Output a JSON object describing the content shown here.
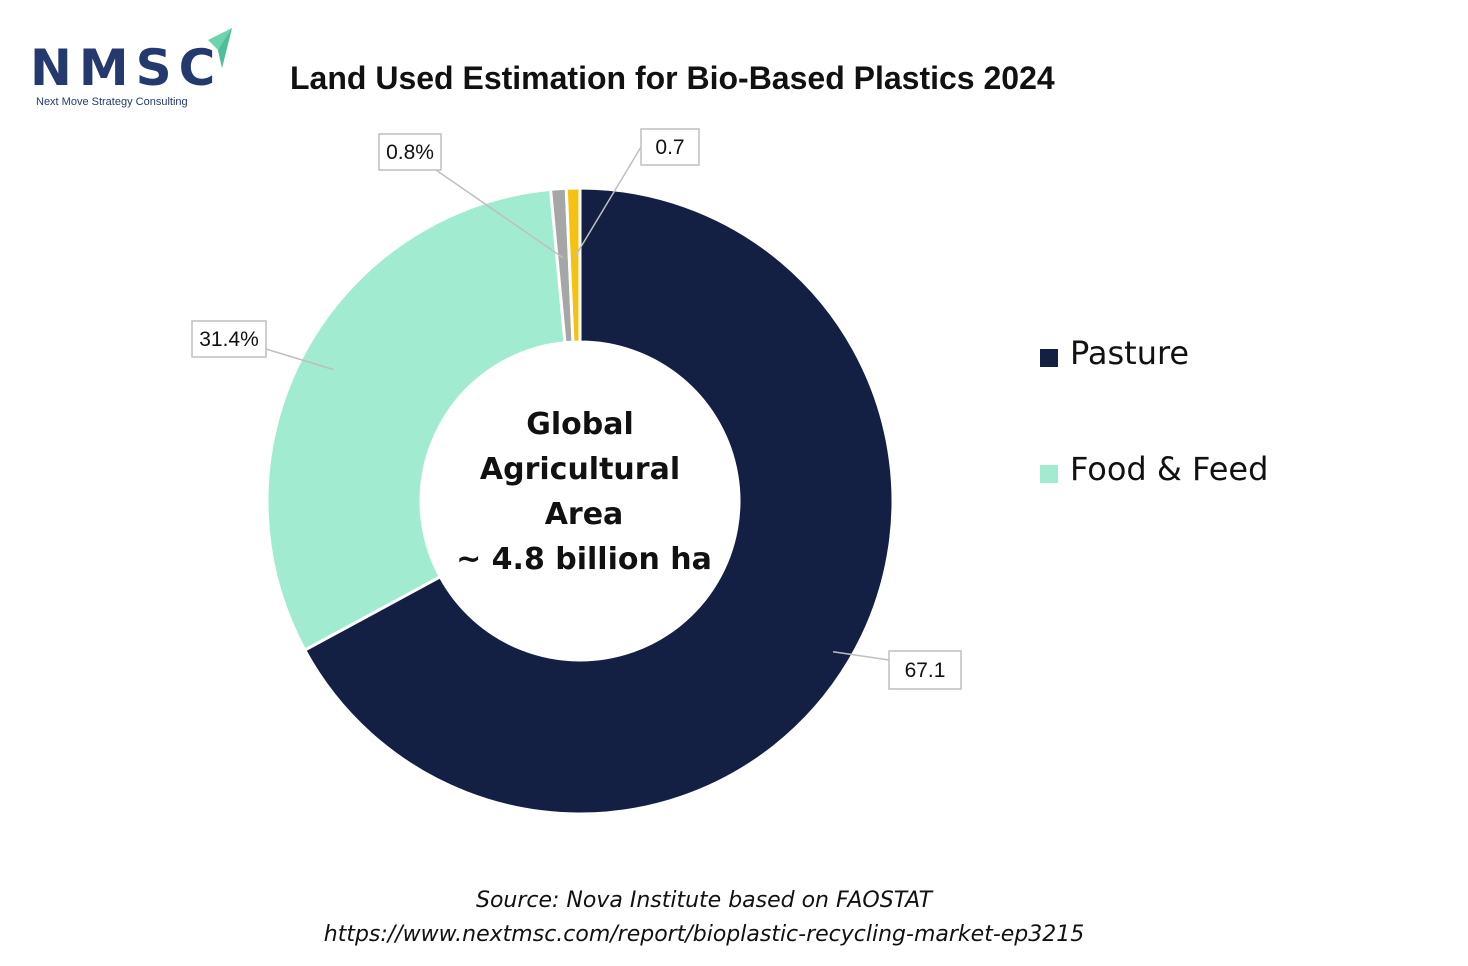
{
  "logo": {
    "wordmark": "NMSC",
    "tagline": "Next Move Strategy Consulting",
    "accent": "#6fd3b0",
    "color": "#243a6e"
  },
  "title": "Land Used Estimation for Bio-Based Plastics 2024",
  "center_label": [
    "Global",
    "Agricultural",
    "Area",
    "~ 4.8 billion ha"
  ],
  "chart_data": {
    "type": "pie",
    "style": "donut",
    "title": "Land Used Estimation for Bio-Based Plastics 2024",
    "slices": [
      {
        "name": "Pasture",
        "value": 67.1,
        "label": "67.1",
        "color": "#132043"
      },
      {
        "name": "Food & Feed",
        "value": 31.4,
        "label": "31.4%",
        "color": "#a1ebd1"
      },
      {
        "value": 0.8,
        "label": "0.8%",
        "color": "#a6a6a6"
      },
      {
        "value": 0.7,
        "label": "0.7",
        "color": "#f6c211"
      }
    ],
    "legend": [
      "Pasture",
      "Food & Feed"
    ],
    "legend_position": "right"
  },
  "source": {
    "line1": "Source: Nova Institute based on FAOSTAT",
    "line2": "https://www.nextmsc.com/report/bioplastic-recycling-market-ep3215"
  }
}
